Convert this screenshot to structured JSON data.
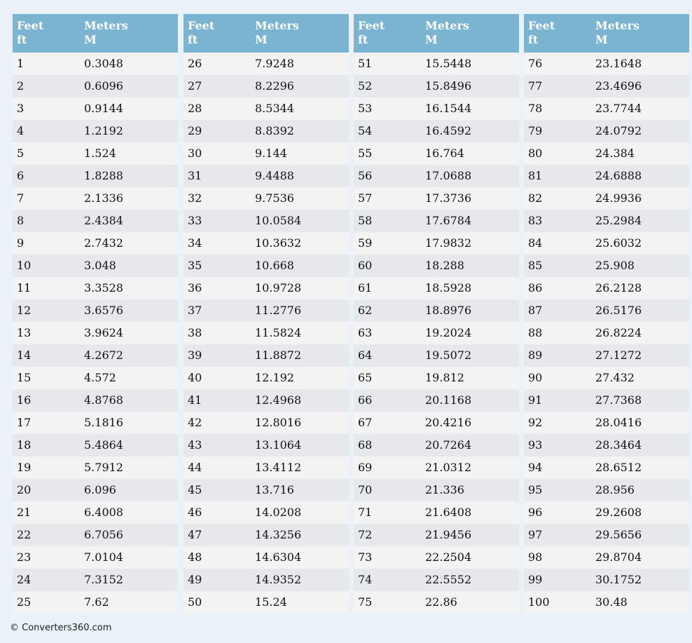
{
  "tables": [
    {
      "header": [
        {
          "name": "Feet",
          "unit": "ft"
        },
        {
          "name": "Meters",
          "unit": "M"
        }
      ],
      "rows": [
        [
          "1",
          "0.3048"
        ],
        [
          "2",
          "0.6096"
        ],
        [
          "3",
          "0.9144"
        ],
        [
          "4",
          "1.2192"
        ],
        [
          "5",
          "1.524"
        ],
        [
          "6",
          "1.8288"
        ],
        [
          "7",
          "2.1336"
        ],
        [
          "8",
          "2.4384"
        ],
        [
          "9",
          "2.7432"
        ],
        [
          "10",
          "3.048"
        ],
        [
          "11",
          "3.3528"
        ],
        [
          "12",
          "3.6576"
        ],
        [
          "13",
          "3.9624"
        ],
        [
          "14",
          "4.2672"
        ],
        [
          "15",
          "4.572"
        ],
        [
          "16",
          "4.8768"
        ],
        [
          "17",
          "5.1816"
        ],
        [
          "18",
          "5.4864"
        ],
        [
          "19",
          "5.7912"
        ],
        [
          "20",
          "6.096"
        ],
        [
          "21",
          "6.4008"
        ],
        [
          "22",
          "6.7056"
        ],
        [
          "23",
          "7.0104"
        ],
        [
          "24",
          "7.3152"
        ],
        [
          "25",
          "7.62"
        ]
      ]
    },
    {
      "header": [
        {
          "name": "Feet",
          "unit": "ft"
        },
        {
          "name": "Meters",
          "unit": "M"
        }
      ],
      "rows": [
        [
          "26",
          "7.9248"
        ],
        [
          "27",
          "8.2296"
        ],
        [
          "28",
          "8.5344"
        ],
        [
          "29",
          "8.8392"
        ],
        [
          "30",
          "9.144"
        ],
        [
          "31",
          "9.4488"
        ],
        [
          "32",
          "9.7536"
        ],
        [
          "33",
          "10.0584"
        ],
        [
          "34",
          "10.3632"
        ],
        [
          "35",
          "10.668"
        ],
        [
          "36",
          "10.9728"
        ],
        [
          "37",
          "11.2776"
        ],
        [
          "38",
          "11.5824"
        ],
        [
          "39",
          "11.8872"
        ],
        [
          "40",
          "12.192"
        ],
        [
          "41",
          "12.4968"
        ],
        [
          "42",
          "12.8016"
        ],
        [
          "43",
          "13.1064"
        ],
        [
          "44",
          "13.4112"
        ],
        [
          "45",
          "13.716"
        ],
        [
          "46",
          "14.0208"
        ],
        [
          "47",
          "14.3256"
        ],
        [
          "48",
          "14.6304"
        ],
        [
          "49",
          "14.9352"
        ],
        [
          "50",
          "15.24"
        ]
      ]
    },
    {
      "header": [
        {
          "name": "Feet",
          "unit": "ft"
        },
        {
          "name": "Meters",
          "unit": "M"
        }
      ],
      "rows": [
        [
          "51",
          "15.5448"
        ],
        [
          "52",
          "15.8496"
        ],
        [
          "53",
          "16.1544"
        ],
        [
          "54",
          "16.4592"
        ],
        [
          "55",
          "16.764"
        ],
        [
          "56",
          "17.0688"
        ],
        [
          "57",
          "17.3736"
        ],
        [
          "58",
          "17.6784"
        ],
        [
          "59",
          "17.9832"
        ],
        [
          "60",
          "18.288"
        ],
        [
          "61",
          "18.5928"
        ],
        [
          "62",
          "18.8976"
        ],
        [
          "63",
          "19.2024"
        ],
        [
          "64",
          "19.5072"
        ],
        [
          "65",
          "19.812"
        ],
        [
          "66",
          "20.1168"
        ],
        [
          "67",
          "20.4216"
        ],
        [
          "68",
          "20.7264"
        ],
        [
          "69",
          "21.0312"
        ],
        [
          "70",
          "21.336"
        ],
        [
          "71",
          "21.6408"
        ],
        [
          "72",
          "21.9456"
        ],
        [
          "73",
          "22.2504"
        ],
        [
          "74",
          "22.5552"
        ],
        [
          "75",
          "22.86"
        ]
      ]
    },
    {
      "header": [
        {
          "name": "Feet",
          "unit": "ft"
        },
        {
          "name": "Meters",
          "unit": "M"
        }
      ],
      "rows": [
        [
          "76",
          "23.1648"
        ],
        [
          "77",
          "23.4696"
        ],
        [
          "78",
          "23.7744"
        ],
        [
          "79",
          "24.0792"
        ],
        [
          "80",
          "24.384"
        ],
        [
          "81",
          "24.6888"
        ],
        [
          "82",
          "24.9936"
        ],
        [
          "83",
          "25.2984"
        ],
        [
          "84",
          "25.6032"
        ],
        [
          "85",
          "25.908"
        ],
        [
          "86",
          "26.2128"
        ],
        [
          "87",
          "26.5176"
        ],
        [
          "88",
          "26.8224"
        ],
        [
          "89",
          "27.1272"
        ],
        [
          "90",
          "27.432"
        ],
        [
          "91",
          "27.7368"
        ],
        [
          "92",
          "28.0416"
        ],
        [
          "93",
          "28.3464"
        ],
        [
          "94",
          "28.6512"
        ],
        [
          "95",
          "28.956"
        ],
        [
          "96",
          "29.2608"
        ],
        [
          "97",
          "29.5656"
        ],
        [
          "98",
          "29.8704"
        ],
        [
          "99",
          "30.1752"
        ],
        [
          "100",
          "30.48"
        ]
      ]
    }
  ],
  "footer": "© Converters360.com"
}
